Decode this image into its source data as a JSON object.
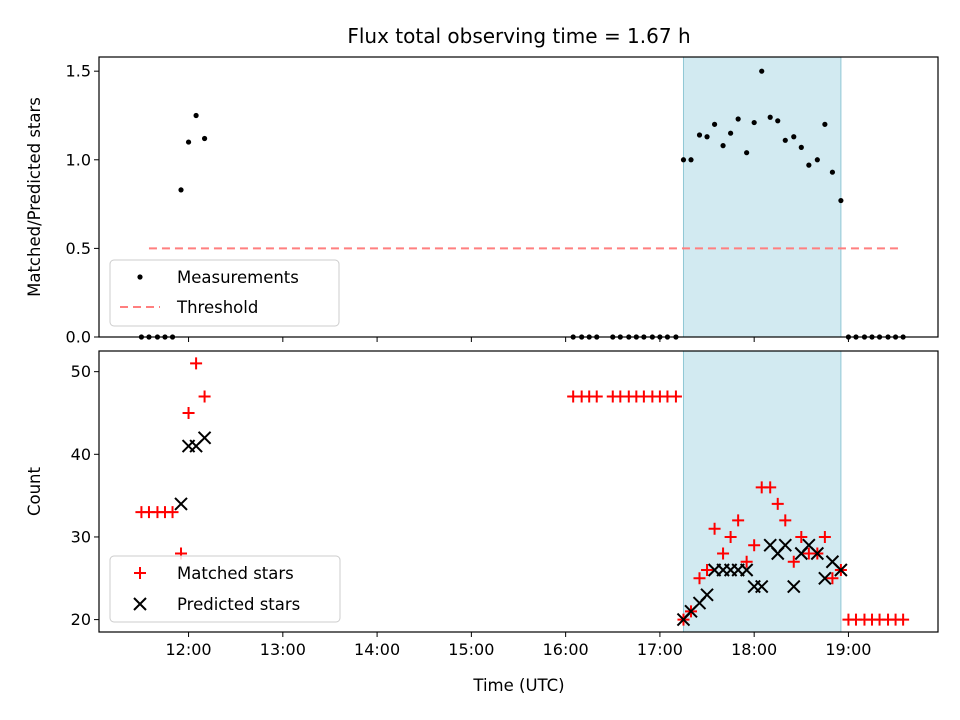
{
  "title": "Flux total observing time = 1.67 h",
  "colors": {
    "measurement": "#000000",
    "threshold": "#ff7f7f",
    "matched": "#ff0000",
    "predicted": "#000000",
    "span_fill": "#add8e6"
  },
  "chart_data": [
    {
      "type": "scatter",
      "ylabel": "Matched/Predicted stars",
      "xlabel": "",
      "x_unit": "hours UTC",
      "xlim": [
        11.05,
        19.95
      ],
      "ylim": [
        0,
        1.58
      ],
      "yticks": [
        0.0,
        0.5,
        1.0,
        1.5
      ],
      "ytick_labels": [
        "0.0",
        "0.5",
        "1.0",
        "1.5"
      ],
      "xticks": [
        12,
        13,
        14,
        15,
        16,
        17,
        18,
        19
      ],
      "grid": false,
      "legend_position": "lower-left",
      "highlight_span": [
        17.25,
        18.92
      ],
      "series": [
        {
          "name": "Measurements",
          "marker": "dot",
          "points": [
            [
              11.5,
              0
            ],
            [
              11.58,
              0
            ],
            [
              11.67,
              0
            ],
            [
              11.75,
              0
            ],
            [
              11.83,
              0
            ],
            [
              11.92,
              0.83
            ],
            [
              12.0,
              1.1
            ],
            [
              12.08,
              1.25
            ],
            [
              12.17,
              1.12
            ],
            [
              16.08,
              0
            ],
            [
              16.17,
              0
            ],
            [
              16.25,
              0
            ],
            [
              16.33,
              0
            ],
            [
              16.5,
              0
            ],
            [
              16.58,
              0
            ],
            [
              16.67,
              0
            ],
            [
              16.75,
              0
            ],
            [
              16.83,
              0
            ],
            [
              16.92,
              0
            ],
            [
              17.0,
              0
            ],
            [
              17.08,
              0
            ],
            [
              17.17,
              0
            ],
            [
              17.25,
              1.0
            ],
            [
              17.33,
              1.0
            ],
            [
              17.42,
              1.14
            ],
            [
              17.5,
              1.13
            ],
            [
              17.58,
              1.2
            ],
            [
              17.67,
              1.08
            ],
            [
              17.75,
              1.15
            ],
            [
              17.83,
              1.23
            ],
            [
              17.92,
              1.04
            ],
            [
              18.0,
              1.21
            ],
            [
              18.08,
              1.5
            ],
            [
              18.17,
              1.24
            ],
            [
              18.25,
              1.22
            ],
            [
              18.33,
              1.11
            ],
            [
              18.42,
              1.13
            ],
            [
              18.5,
              1.07
            ],
            [
              18.58,
              0.97
            ],
            [
              18.67,
              1.0
            ],
            [
              18.75,
              1.2
            ],
            [
              18.83,
              0.93
            ],
            [
              18.92,
              0.77
            ],
            [
              19.0,
              0
            ],
            [
              19.08,
              0
            ],
            [
              19.17,
              0
            ],
            [
              19.25,
              0
            ],
            [
              19.33,
              0
            ],
            [
              19.42,
              0
            ],
            [
              19.5,
              0
            ],
            [
              19.58,
              0
            ]
          ]
        },
        {
          "name": "Threshold",
          "style": "dashed",
          "points": [
            [
              11.58,
              0.5
            ],
            [
              19.55,
              0.5
            ]
          ]
        }
      ]
    },
    {
      "type": "scatter",
      "ylabel": "Count",
      "xlabel": "Time (UTC)",
      "x_unit": "hours UTC",
      "xlim": [
        11.05,
        19.95
      ],
      "ylim": [
        18.5,
        52.5
      ],
      "yticks": [
        20,
        30,
        40,
        50
      ],
      "ytick_labels": [
        "20",
        "30",
        "40",
        "50"
      ],
      "xticks": [
        12,
        13,
        14,
        15,
        16,
        17,
        18,
        19
      ],
      "xtick_labels": [
        "12:00",
        "13:00",
        "14:00",
        "15:00",
        "16:00",
        "17:00",
        "18:00",
        "19:00"
      ],
      "grid": false,
      "legend_position": "lower-left",
      "highlight_span": [
        17.25,
        18.92
      ],
      "series": [
        {
          "name": "Matched stars",
          "marker": "plus",
          "points": [
            [
              11.5,
              33
            ],
            [
              11.58,
              33
            ],
            [
              11.67,
              33
            ],
            [
              11.75,
              33
            ],
            [
              11.83,
              33
            ],
            [
              11.92,
              28
            ],
            [
              12.0,
              45
            ],
            [
              12.08,
              51
            ],
            [
              12.17,
              47
            ],
            [
              16.08,
              47
            ],
            [
              16.17,
              47
            ],
            [
              16.25,
              47
            ],
            [
              16.33,
              47
            ],
            [
              16.5,
              47
            ],
            [
              16.58,
              47
            ],
            [
              16.67,
              47
            ],
            [
              16.75,
              47
            ],
            [
              16.83,
              47
            ],
            [
              16.92,
              47
            ],
            [
              17.0,
              47
            ],
            [
              17.08,
              47
            ],
            [
              17.17,
              47
            ],
            [
              17.25,
              20
            ],
            [
              17.33,
              21
            ],
            [
              17.42,
              25
            ],
            [
              17.5,
              26
            ],
            [
              17.58,
              31
            ],
            [
              17.67,
              28
            ],
            [
              17.75,
              30
            ],
            [
              17.83,
              32
            ],
            [
              17.92,
              27
            ],
            [
              18.0,
              29
            ],
            [
              18.08,
              36
            ],
            [
              18.17,
              36
            ],
            [
              18.25,
              34
            ],
            [
              18.33,
              32
            ],
            [
              18.42,
              27
            ],
            [
              18.5,
              30
            ],
            [
              18.58,
              28
            ],
            [
              18.67,
              28
            ],
            [
              18.75,
              30
            ],
            [
              18.83,
              25
            ],
            [
              18.92,
              26
            ],
            [
              19.0,
              20
            ],
            [
              19.08,
              20
            ],
            [
              19.17,
              20
            ],
            [
              19.25,
              20
            ],
            [
              19.33,
              20
            ],
            [
              19.42,
              20
            ],
            [
              19.5,
              20
            ],
            [
              19.58,
              20
            ]
          ]
        },
        {
          "name": "Predicted stars",
          "marker": "x",
          "points": [
            [
              11.92,
              34
            ],
            [
              12.0,
              41
            ],
            [
              12.08,
              41
            ],
            [
              12.17,
              42
            ],
            [
              17.25,
              20
            ],
            [
              17.33,
              21
            ],
            [
              17.42,
              22
            ],
            [
              17.5,
              23
            ],
            [
              17.58,
              26
            ],
            [
              17.67,
              26
            ],
            [
              17.75,
              26
            ],
            [
              17.83,
              26
            ],
            [
              17.92,
              26
            ],
            [
              18.0,
              24
            ],
            [
              18.08,
              24
            ],
            [
              18.17,
              29
            ],
            [
              18.25,
              28
            ],
            [
              18.33,
              29
            ],
            [
              18.42,
              24
            ],
            [
              18.5,
              28
            ],
            [
              18.58,
              29
            ],
            [
              18.67,
              28
            ],
            [
              18.75,
              25
            ],
            [
              18.83,
              27
            ],
            [
              18.92,
              26
            ]
          ]
        }
      ]
    }
  ]
}
